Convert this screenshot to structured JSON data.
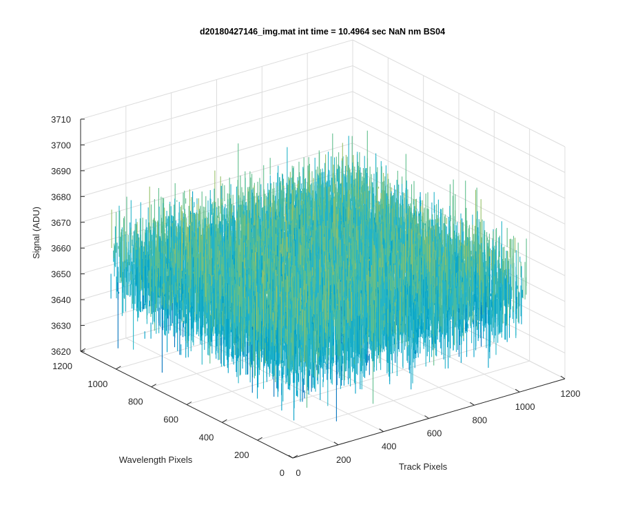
{
  "chart_data": {
    "type": "surface",
    "title": "d20180427146_img.mat int time = 10.4964 sec  NaN nm BS04",
    "xlabel": "Track Pixels",
    "ylabel": "Wavelength Pixels",
    "zlabel": "Signal (ADU)",
    "x_ticks": [
      "0",
      "200",
      "400",
      "600",
      "800",
      "1000",
      "1200"
    ],
    "y_ticks": [
      "0",
      "200",
      "400",
      "600",
      "800",
      "1000",
      "1200"
    ],
    "z_ticks": [
      "3620",
      "3630",
      "3640",
      "3650",
      "3660",
      "3670",
      "3680",
      "3690",
      "3700",
      "3710"
    ],
    "xlim": [
      0,
      1200
    ],
    "ylim": [
      0,
      1200
    ],
    "zlim": [
      3620,
      3710
    ],
    "data_extent": {
      "x": [
        0,
        1024
      ],
      "y": [
        0,
        1024
      ]
    },
    "z_mean": 3660,
    "z_range": [
      3625,
      3705
    ],
    "grid": true,
    "colormap": [
      "#0072bd",
      "#00a0c8",
      "#23b4c8",
      "#5fbe8c",
      "#96c068",
      "#d7b53c"
    ]
  }
}
